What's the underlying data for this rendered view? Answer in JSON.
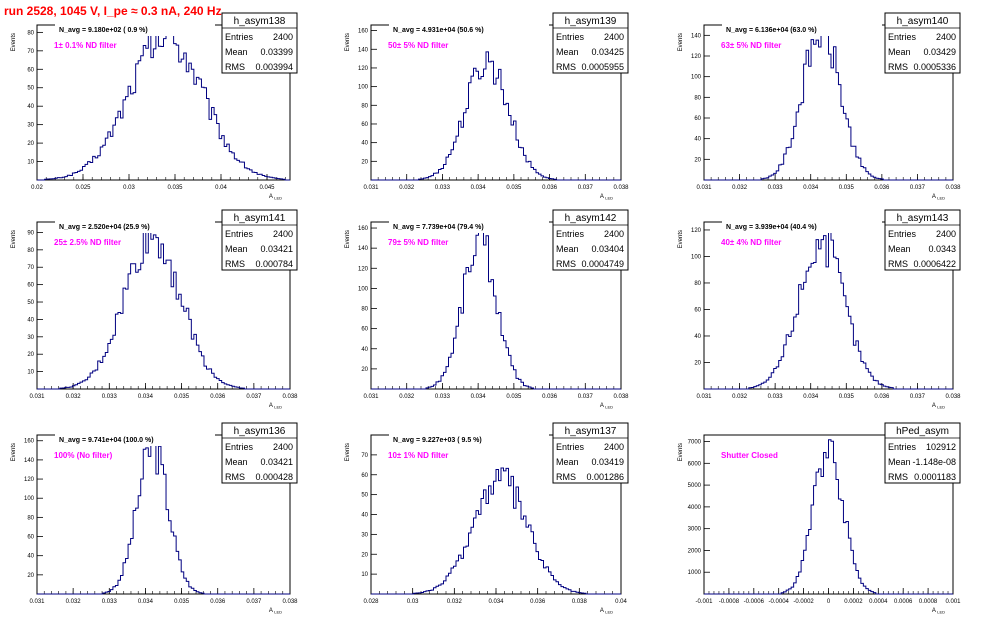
{
  "run_title": "run 2528,  1045 V, I_pe ≈ 0.3 nA, 240 Hz",
  "stats_labels": {
    "entries": "Entries",
    "mean": "Mean",
    "rms": "RMS"
  },
  "colors": {
    "histogram": "#000080",
    "annotation": "#ff00ff",
    "title": "#ff0000",
    "axes": "#000000"
  },
  "chart_data": [
    {
      "type": "bar",
      "name": "h_asym138",
      "navg": "N_avg = 9.180e+02 ( 0.9 %)",
      "filter": "1± 0.1% ND filter",
      "entries": "2400",
      "mean": "0.03399",
      "rms": "0.003994",
      "xlabel": "A",
      "xlabel_sub": "LED",
      "ylabel": "Events",
      "xlim": [
        0.02,
        0.0475
      ],
      "ylim": [
        0,
        84
      ],
      "xticks": [
        "0.02",
        "0.025",
        "0.03",
        "0.035",
        "0.04",
        "0.045"
      ],
      "yticks": [
        "10",
        "20",
        "30",
        "40",
        "50",
        "60",
        "70",
        "80"
      ],
      "center": 0.034,
      "sigma": 0.004,
      "peak": 78
    },
    {
      "type": "bar",
      "name": "h_asym139",
      "navg": "N_avg = 4.931e+04 (50.6 %)",
      "filter": "50± 5% ND filter",
      "entries": "2400",
      "mean": "0.03425",
      "rms": "0.0005955",
      "xlabel": "A",
      "xlabel_sub": "LED",
      "ylabel": "Events",
      "xlim": [
        0.031,
        0.038
      ],
      "ylim": [
        0,
        166
      ],
      "xticks": [
        "0.031",
        "0.032",
        "0.033",
        "0.034",
        "0.035",
        "0.036",
        "0.037",
        "0.038"
      ],
      "yticks": [
        "20",
        "40",
        "60",
        "80",
        "100",
        "120",
        "140",
        "160"
      ],
      "center": 0.03425,
      "sigma": 0.0006,
      "peak": 128
    },
    {
      "type": "bar",
      "name": "h_asym140",
      "navg": "N_avg = 6.136e+04 (63.0 %)",
      "filter": "63± 5% ND filter",
      "entries": "2400",
      "mean": "0.03429",
      "rms": "0.0005336",
      "xlabel": "A",
      "xlabel_sub": "LED",
      "ylabel": "Events",
      "xlim": [
        0.031,
        0.038
      ],
      "ylim": [
        0,
        150
      ],
      "xticks": [
        "0.031",
        "0.032",
        "0.033",
        "0.034",
        "0.035",
        "0.036",
        "0.037",
        "0.038"
      ],
      "yticks": [
        "20",
        "40",
        "60",
        "80",
        "100",
        "120",
        "140"
      ],
      "center": 0.0343,
      "sigma": 0.00053,
      "peak": 145
    },
    {
      "type": "bar",
      "name": "h_asym141",
      "navg": "N_avg = 2.520e+04 (25.9 %)",
      "filter": "25± 2.5% ND filter",
      "entries": "2400",
      "mean": "0.03421",
      "rms": "0.000784",
      "xlabel": "A",
      "xlabel_sub": "LED",
      "ylabel": "Events",
      "xlim": [
        0.031,
        0.038
      ],
      "ylim": [
        0,
        96
      ],
      "xticks": [
        "0.031",
        "0.032",
        "0.033",
        "0.034",
        "0.035",
        "0.036",
        "0.037",
        "0.038"
      ],
      "yticks": [
        "10",
        "20",
        "30",
        "40",
        "50",
        "60",
        "70",
        "80",
        "90"
      ],
      "center": 0.0342,
      "sigma": 0.00078,
      "peak": 88
    },
    {
      "type": "bar",
      "name": "h_asym142",
      "navg": "N_avg = 7.739e+04 (79.4 %)",
      "filter": "79± 5% ND filter",
      "entries": "2400",
      "mean": "0.03404",
      "rms": "0.0004749",
      "xlabel": "A",
      "xlabel_sub": "LED",
      "ylabel": "Events",
      "xlim": [
        0.031,
        0.038
      ],
      "ylim": [
        0,
        166
      ],
      "xticks": [
        "0.031",
        "0.032",
        "0.033",
        "0.034",
        "0.035",
        "0.036",
        "0.037",
        "0.038"
      ],
      "yticks": [
        "20",
        "40",
        "60",
        "80",
        "100",
        "120",
        "140",
        "160"
      ],
      "center": 0.03404,
      "sigma": 0.00047,
      "peak": 150
    },
    {
      "type": "bar",
      "name": "h_asym143",
      "navg": "N_avg = 3.939e+04 (40.4 %)",
      "filter": "40± 4% ND filter",
      "entries": "2400",
      "mean": "0.0343",
      "rms": "0.0006422",
      "xlabel": "A",
      "xlabel_sub": "LED",
      "ylabel": "Events",
      "xlim": [
        0.031,
        0.038
      ],
      "ylim": [
        0,
        126
      ],
      "xticks": [
        "0.031",
        "0.032",
        "0.033",
        "0.034",
        "0.035",
        "0.036",
        "0.037",
        "0.038"
      ],
      "yticks": [
        "20",
        "40",
        "60",
        "80",
        "100",
        "120"
      ],
      "center": 0.0343,
      "sigma": 0.00064,
      "peak": 112
    },
    {
      "type": "bar",
      "name": "h_asym136",
      "navg": "N_avg = 9.741e+04 (100.0 %)",
      "filter": "100% (No filter)",
      "entries": "2400",
      "mean": "0.03421",
      "rms": "0.000428",
      "xlabel": "A",
      "xlabel_sub": "LED",
      "ylabel": "Events",
      "xlim": [
        0.031,
        0.038
      ],
      "ylim": [
        0,
        166
      ],
      "xticks": [
        "0.031",
        "0.032",
        "0.033",
        "0.034",
        "0.035",
        "0.036",
        "0.037",
        "0.038"
      ],
      "yticks": [
        "20",
        "40",
        "60",
        "80",
        "100",
        "120",
        "140",
        "160"
      ],
      "center": 0.0342,
      "sigma": 0.00043,
      "peak": 152
    },
    {
      "type": "bar",
      "name": "h_asym137",
      "navg": "N_avg = 9.227e+03 ( 9.5 %)",
      "filter": "10± 1% ND filter",
      "entries": "2400",
      "mean": "0.03419",
      "rms": "0.001286",
      "xlabel": "A",
      "xlabel_sub": "LED",
      "ylabel": "Events",
      "xlim": [
        0.028,
        0.04
      ],
      "ylim": [
        0,
        80
      ],
      "xticks": [
        "0.028",
        "0.03",
        "0.032",
        "0.034",
        "0.036",
        "0.038",
        "0.04"
      ],
      "yticks": [
        "10",
        "20",
        "30",
        "40",
        "50",
        "60",
        "70"
      ],
      "center": 0.0342,
      "sigma": 0.00128,
      "peak": 58
    },
    {
      "type": "bar",
      "name": "hPed_asym",
      "navg": "",
      "filter": "Shutter Closed",
      "entries": "102912",
      "mean": "-1.148e-08",
      "rms": "0.0001183",
      "xlabel": "A",
      "xlabel_sub": "LED",
      "ylabel": "Events",
      "xlim": [
        -0.001,
        0.001
      ],
      "ylim": [
        0,
        7300
      ],
      "xticks": [
        "-0.001",
        "-0.0008",
        "-0.0006",
        "-0.0004",
        "-0.0002",
        "0",
        "0.0002",
        "0.0004",
        "0.0006",
        "0.0008",
        "0.001"
      ],
      "yticks": [
        "1000",
        "2000",
        "3000",
        "4000",
        "5000",
        "6000",
        "7000"
      ],
      "center": 0,
      "sigma": 0.00012,
      "peak": 6800
    }
  ]
}
